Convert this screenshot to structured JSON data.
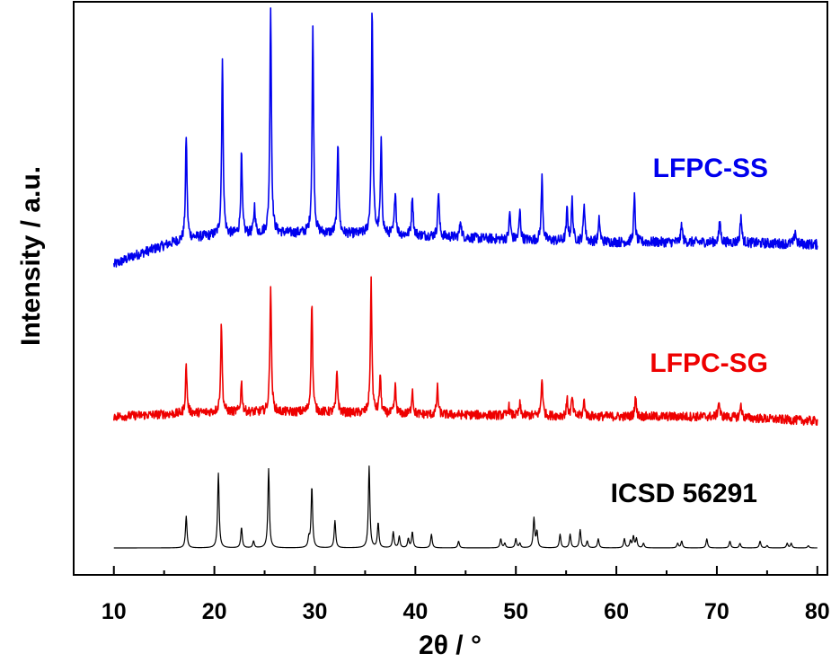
{
  "chart_data": {
    "type": "line",
    "title": "",
    "xlabel": "2θ / °",
    "ylabel": "Intensity / a.u.",
    "xlim": [
      6,
      81
    ],
    "x_ticks": [
      10,
      20,
      30,
      40,
      50,
      60,
      70,
      80
    ],
    "x_tick_labels": [
      "10",
      "20",
      "30",
      "40",
      "50",
      "60",
      "70",
      "80"
    ],
    "y_ticks_shown": false,
    "grid": false,
    "legend": "inline labels beside each trace",
    "x_range": [
      10,
      80
    ],
    "series": [
      {
        "name": "LFPC-SS",
        "color": "#0000ee",
        "offset": 1.25,
        "noise": 0.022,
        "background": [
          [
            10,
            0.0
          ],
          [
            12,
            0.04
          ],
          [
            14,
            0.07
          ],
          [
            16,
            0.1
          ],
          [
            18,
            0.12
          ],
          [
            20,
            0.13
          ],
          [
            25,
            0.14
          ],
          [
            30,
            0.14
          ],
          [
            40,
            0.13
          ],
          [
            50,
            0.11
          ],
          [
            60,
            0.1
          ],
          [
            70,
            0.1
          ],
          [
            80,
            0.09
          ]
        ],
        "peaks": [
          [
            17.2,
            0.46
          ],
          [
            20.8,
            0.77
          ],
          [
            22.7,
            0.35
          ],
          [
            24.0,
            0.12
          ],
          [
            25.6,
            1.0
          ],
          [
            29.8,
            0.9
          ],
          [
            32.3,
            0.41
          ],
          [
            35.7,
            1.0
          ],
          [
            36.6,
            0.4
          ],
          [
            38.0,
            0.2
          ],
          [
            39.7,
            0.18
          ],
          [
            42.3,
            0.2
          ],
          [
            44.5,
            0.08
          ],
          [
            49.4,
            0.12
          ],
          [
            50.4,
            0.13
          ],
          [
            52.6,
            0.28
          ],
          [
            55.1,
            0.14
          ],
          [
            55.6,
            0.18
          ],
          [
            56.8,
            0.17
          ],
          [
            58.3,
            0.1
          ],
          [
            61.8,
            0.2
          ],
          [
            66.5,
            0.08
          ],
          [
            70.3,
            0.1
          ],
          [
            72.4,
            0.12
          ],
          [
            77.8,
            0.06
          ]
        ]
      },
      {
        "name": "LFPC-SG",
        "color": "#ee0000",
        "offset": 0.56,
        "noise": 0.02,
        "background": [
          [
            10,
            0.02
          ],
          [
            20,
            0.04
          ],
          [
            30,
            0.04
          ],
          [
            40,
            0.03
          ],
          [
            60,
            0.02
          ],
          [
            70,
            0.02
          ],
          [
            80,
            0.0
          ]
        ],
        "peaks": [
          [
            17.2,
            0.21
          ],
          [
            20.7,
            0.39
          ],
          [
            22.7,
            0.13
          ],
          [
            25.6,
            0.56
          ],
          [
            29.7,
            0.49
          ],
          [
            32.2,
            0.18
          ],
          [
            35.6,
            0.58
          ],
          [
            36.5,
            0.17
          ],
          [
            38.0,
            0.12
          ],
          [
            39.7,
            0.11
          ],
          [
            42.2,
            0.12
          ],
          [
            49.3,
            0.04
          ],
          [
            50.4,
            0.05
          ],
          [
            52.6,
            0.17
          ],
          [
            55.1,
            0.07
          ],
          [
            55.6,
            0.08
          ],
          [
            56.8,
            0.07
          ],
          [
            61.9,
            0.09
          ],
          [
            70.2,
            0.07
          ],
          [
            72.4,
            0.06
          ]
        ]
      },
      {
        "name": "ICSD 56291",
        "color": "#000000",
        "offset": 0.0,
        "noise": 0.0,
        "background": [
          [
            10,
            0.0
          ],
          [
            80,
            0.0
          ]
        ],
        "peaks": [
          [
            17.2,
            0.14
          ],
          [
            20.4,
            0.33
          ],
          [
            22.7,
            0.09
          ],
          [
            23.9,
            0.03
          ],
          [
            25.4,
            0.35
          ],
          [
            29.4,
            0.04
          ],
          [
            29.7,
            0.27
          ],
          [
            32.0,
            0.12
          ],
          [
            35.4,
            0.36
          ],
          [
            36.3,
            0.11
          ],
          [
            37.8,
            0.07
          ],
          [
            38.4,
            0.05
          ],
          [
            39.3,
            0.04
          ],
          [
            39.7,
            0.07
          ],
          [
            41.6,
            0.06
          ],
          [
            44.3,
            0.03
          ],
          [
            48.5,
            0.04
          ],
          [
            48.9,
            0.02
          ],
          [
            50.0,
            0.04
          ],
          [
            50.4,
            0.02
          ],
          [
            51.8,
            0.13
          ],
          [
            52.1,
            0.07
          ],
          [
            54.4,
            0.06
          ],
          [
            55.4,
            0.06
          ],
          [
            56.4,
            0.08
          ],
          [
            57.1,
            0.03
          ],
          [
            58.2,
            0.04
          ],
          [
            60.8,
            0.04
          ],
          [
            61.4,
            0.03
          ],
          [
            61.7,
            0.05
          ],
          [
            62.0,
            0.04
          ],
          [
            62.7,
            0.02
          ],
          [
            66.1,
            0.02
          ],
          [
            66.5,
            0.03
          ],
          [
            69.0,
            0.04
          ],
          [
            71.3,
            0.03
          ],
          [
            72.3,
            0.02
          ],
          [
            74.3,
            0.03
          ],
          [
            75.0,
            0.01
          ],
          [
            77.0,
            0.02
          ],
          [
            77.4,
            0.02
          ],
          [
            79.1,
            0.01
          ]
        ]
      }
    ]
  }
}
